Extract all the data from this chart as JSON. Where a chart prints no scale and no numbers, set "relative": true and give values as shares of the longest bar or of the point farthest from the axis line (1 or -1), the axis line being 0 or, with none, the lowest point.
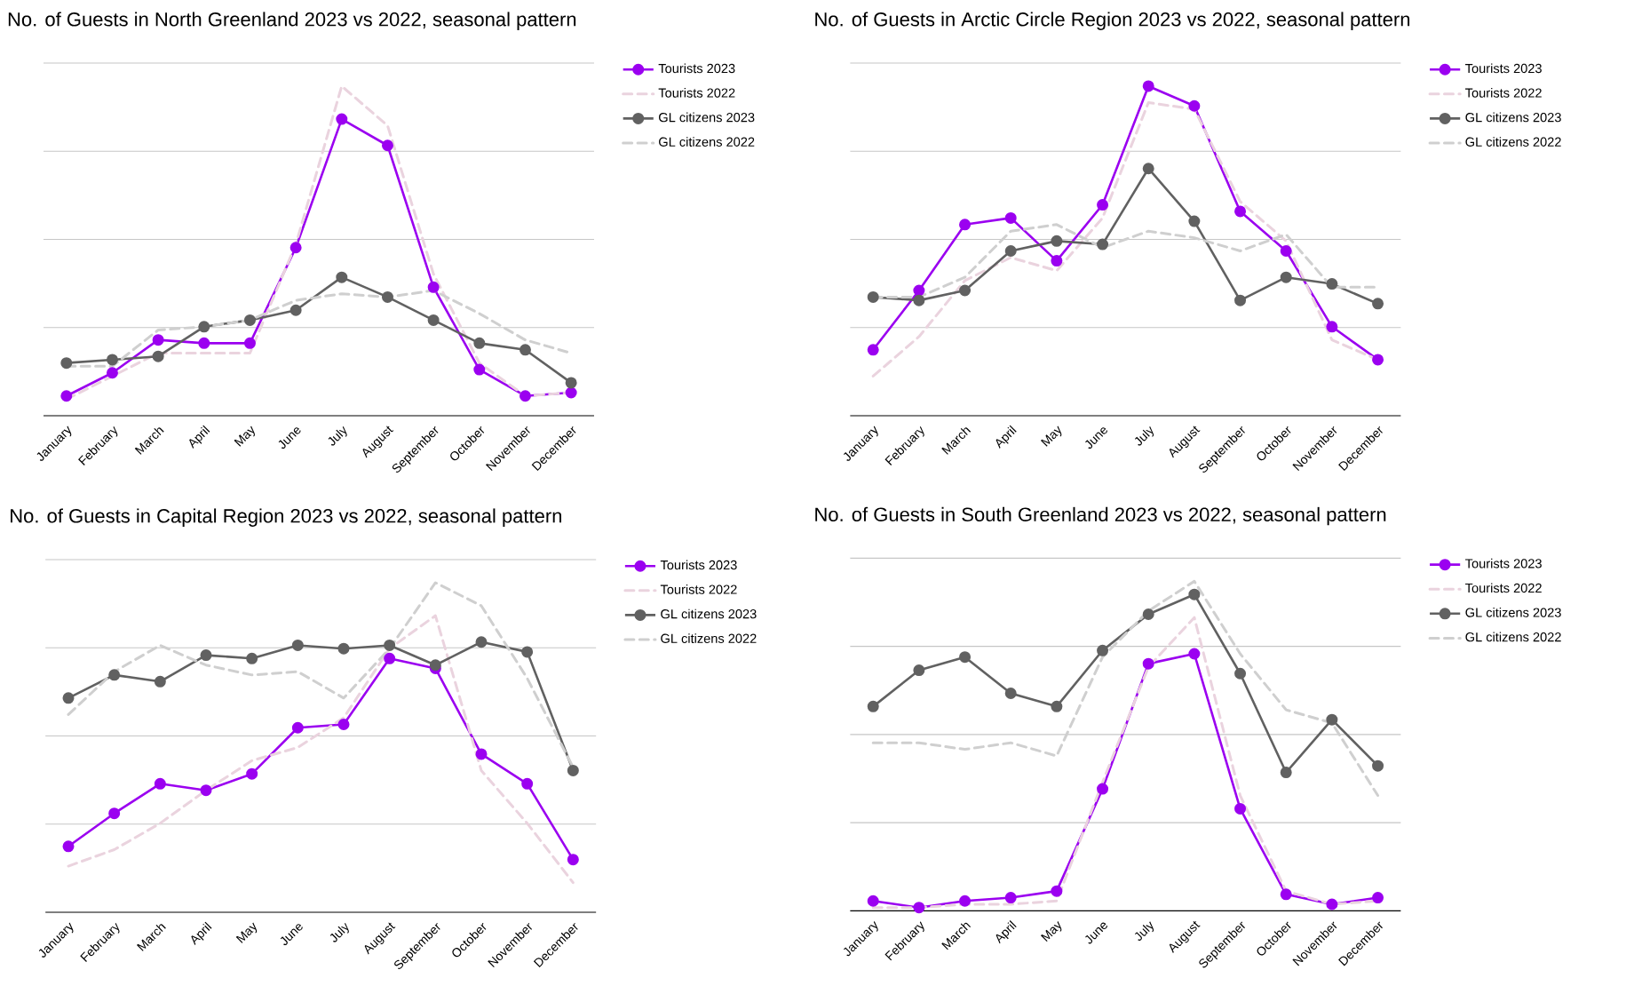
{
  "chart_data": [
    {
      "type": "line",
      "title": "No. of Guests in North Greenland 2023 vs 2022, seasonal pattern",
      "relative": true,
      "grid": "y",
      "legend": "top right",
      "categories": [
        "January",
        "February",
        "March",
        "April",
        "May",
        "June",
        "July",
        "August",
        "September",
        "October",
        "November",
        "December"
      ],
      "series": [
        {
          "name": "Tourists 2023",
          "color": "#9b00f0",
          "marker": "circle",
          "line_style": "solid",
          "values": [
            0.06,
            0.13,
            0.23,
            0.22,
            0.22,
            0.51,
            0.9,
            0.82,
            0.39,
            0.14,
            0.06,
            0.07
          ]
        },
        {
          "name": "Tourists 2022",
          "color": "#ead3de",
          "marker": "none",
          "line_style": "dashed",
          "values": [
            0.05,
            0.12,
            0.19,
            0.19,
            0.19,
            0.52,
            1.0,
            0.88,
            0.43,
            0.16,
            0.06,
            0.07
          ]
        },
        {
          "name": "GL citizens 2023",
          "color": "#616161",
          "marker": "circle",
          "line_style": "solid",
          "values": [
            0.16,
            0.17,
            0.18,
            0.27,
            0.29,
            0.32,
            0.42,
            0.36,
            0.29,
            0.22,
            0.2,
            0.1
          ]
        },
        {
          "name": "GL citizens 2022",
          "color": "#cfcfcf",
          "marker": "none",
          "line_style": "dashed",
          "values": [
            0.15,
            0.15,
            0.26,
            0.27,
            0.29,
            0.35,
            0.37,
            0.36,
            0.38,
            0.31,
            0.23,
            0.19
          ]
        }
      ]
    },
    {
      "type": "line",
      "title": "No. of Guests in Arctic Circle Region 2023 vs 2022, seasonal pattern",
      "relative": true,
      "grid": "y",
      "legend": "top right",
      "categories": [
        "January",
        "February",
        "March",
        "April",
        "May",
        "June",
        "July",
        "August",
        "September",
        "October",
        "November",
        "December"
      ],
      "series": [
        {
          "name": "Tourists 2023",
          "color": "#9b00f0",
          "marker": "circle",
          "line_style": "solid",
          "values": [
            0.2,
            0.38,
            0.58,
            0.6,
            0.47,
            0.64,
            1.0,
            0.94,
            0.62,
            0.5,
            0.27,
            0.17
          ]
        },
        {
          "name": "Tourists 2022",
          "color": "#ead3de",
          "marker": "none",
          "line_style": "dashed",
          "values": [
            0.12,
            0.24,
            0.41,
            0.48,
            0.44,
            0.6,
            0.95,
            0.93,
            0.65,
            0.53,
            0.23,
            0.17
          ]
        },
        {
          "name": "GL citizens 2023",
          "color": "#616161",
          "marker": "circle",
          "line_style": "solid",
          "values": [
            0.36,
            0.35,
            0.38,
            0.5,
            0.53,
            0.52,
            0.75,
            0.59,
            0.35,
            0.42,
            0.4,
            0.34
          ]
        },
        {
          "name": "GL citizens 2022",
          "color": "#cfcfcf",
          "marker": "none",
          "line_style": "dashed",
          "values": [
            0.36,
            0.36,
            0.42,
            0.56,
            0.58,
            0.51,
            0.56,
            0.54,
            0.5,
            0.55,
            0.39,
            0.39
          ]
        }
      ]
    },
    {
      "type": "line",
      "title": "No. of Guests in Capital Region 2023 vs 2022, seasonal pattern",
      "relative": true,
      "grid": "y",
      "legend": "top right",
      "categories": [
        "January",
        "February",
        "March",
        "April",
        "May",
        "June",
        "July",
        "August",
        "September",
        "October",
        "November",
        "December"
      ],
      "series": [
        {
          "name": "Tourists 2023",
          "color": "#9b00f0",
          "marker": "circle",
          "line_style": "solid",
          "values": [
            0.2,
            0.3,
            0.39,
            0.37,
            0.42,
            0.56,
            0.57,
            0.77,
            0.74,
            0.48,
            0.39,
            0.16
          ]
        },
        {
          "name": "Tourists 2022",
          "color": "#ead3de",
          "marker": "none",
          "line_style": "dashed",
          "values": [
            0.14,
            0.19,
            0.27,
            0.37,
            0.46,
            0.5,
            0.59,
            0.8,
            0.9,
            0.43,
            0.27,
            0.09
          ]
        },
        {
          "name": "GL citizens 2023",
          "color": "#616161",
          "marker": "circle",
          "line_style": "solid",
          "values": [
            0.65,
            0.72,
            0.7,
            0.78,
            0.77,
            0.81,
            0.8,
            0.81,
            0.75,
            0.82,
            0.79,
            0.43
          ]
        },
        {
          "name": "GL citizens 2022",
          "color": "#cfcfcf",
          "marker": "none",
          "line_style": "dashed",
          "values": [
            0.6,
            0.73,
            0.81,
            0.75,
            0.72,
            0.73,
            0.65,
            0.8,
            1.0,
            0.93,
            0.71,
            0.44
          ]
        }
      ]
    },
    {
      "type": "line",
      "title": "No. of Guests in South Greenland 2023 vs 2022, seasonal pattern",
      "relative": true,
      "grid": "y",
      "legend": "top right",
      "categories": [
        "January",
        "February",
        "March",
        "April",
        "May",
        "June",
        "July",
        "August",
        "September",
        "October",
        "November",
        "December"
      ],
      "series": [
        {
          "name": "Tourists 2023",
          "color": "#9b00f0",
          "marker": "circle",
          "line_style": "solid",
          "values": [
            0.03,
            0.01,
            0.03,
            0.04,
            0.06,
            0.37,
            0.75,
            0.78,
            0.31,
            0.05,
            0.02,
            0.04
          ]
        },
        {
          "name": "Tourists 2022",
          "color": "#ead3de",
          "marker": "none",
          "line_style": "dashed",
          "values": [
            0.01,
            0.01,
            0.02,
            0.02,
            0.03,
            0.39,
            0.74,
            0.89,
            0.35,
            0.06,
            0.02,
            0.03
          ]
        },
        {
          "name": "GL citizens 2023",
          "color": "#616161",
          "marker": "circle",
          "line_style": "solid",
          "values": [
            0.62,
            0.73,
            0.77,
            0.66,
            0.62,
            0.79,
            0.9,
            0.96,
            0.72,
            0.42,
            0.58,
            0.44
          ]
        },
        {
          "name": "GL citizens 2022",
          "color": "#cfcfcf",
          "marker": "none",
          "line_style": "dashed",
          "values": [
            0.51,
            0.51,
            0.49,
            0.51,
            0.47,
            0.77,
            0.91,
            1.0,
            0.78,
            0.61,
            0.57,
            0.35
          ]
        }
      ]
    }
  ]
}
